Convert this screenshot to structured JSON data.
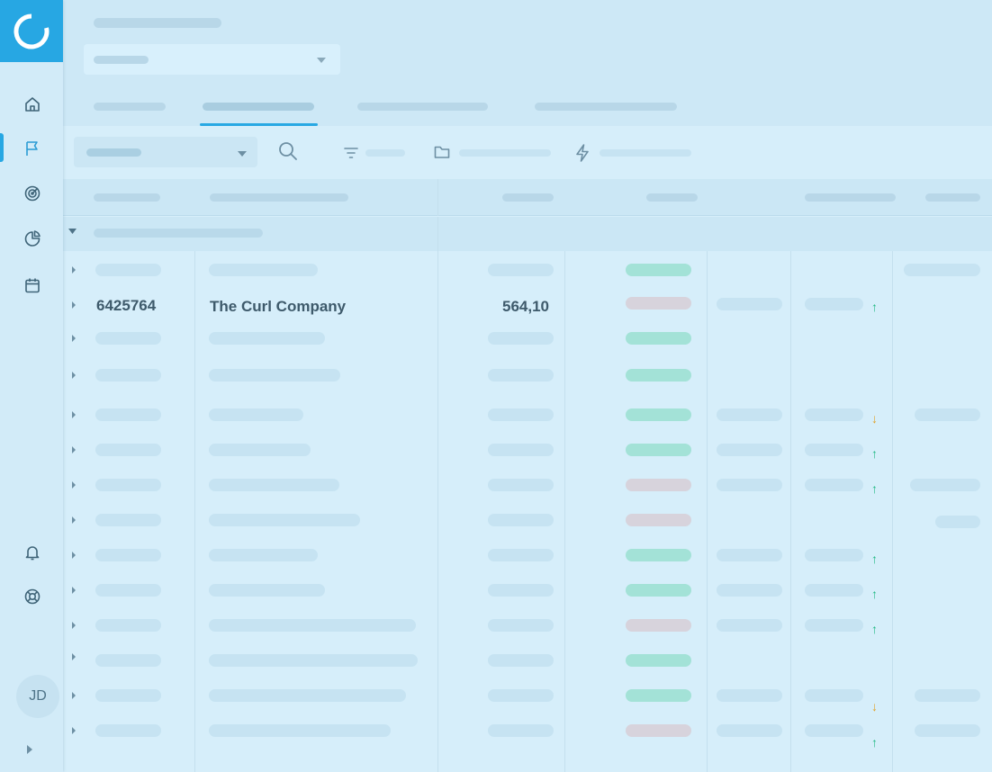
{
  "sidebar": {
    "logo_icon": "circular-logo-icon",
    "nav": [
      {
        "icon": "home-icon",
        "active": false
      },
      {
        "icon": "flag-icon",
        "active": true
      },
      {
        "icon": "target-icon",
        "active": false
      },
      {
        "icon": "pie-chart-icon",
        "active": false
      },
      {
        "icon": "calendar-icon",
        "active": false
      }
    ],
    "bottom_nav": [
      {
        "icon": "bell-icon"
      },
      {
        "icon": "lifebuoy-icon"
      }
    ],
    "avatar_initials": "JD",
    "expand_icon": "chevron-right-icon"
  },
  "toolbar": {
    "search_icon": "search-icon",
    "filter_icon": "filter-icon",
    "folder_icon": "folder-icon",
    "bolt_icon": "lightning-icon"
  },
  "highlighted_row": {
    "id": "6425764",
    "name": "The Curl Company",
    "amount": "564,10"
  },
  "colors": {
    "accent": "#27a7e3",
    "status_green": "#a3e2d7",
    "status_pink": "#d7d3dc",
    "trend_up": "#21b884",
    "trend_down": "#e0a22a"
  }
}
